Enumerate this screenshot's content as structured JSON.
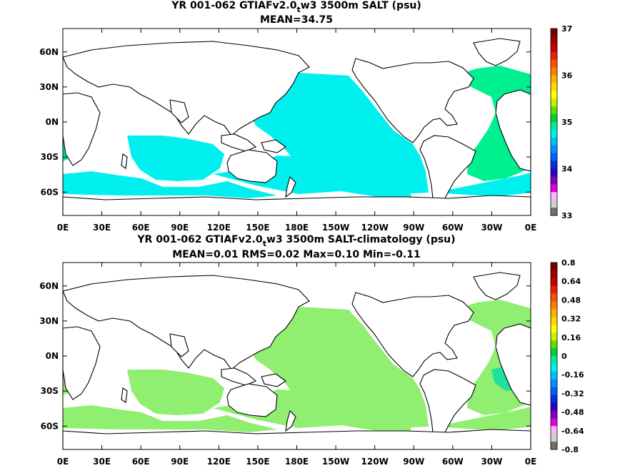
{
  "panels": [
    {
      "title_line1": "YR 001-062 GTIAFv2.0",
      "title_sub": "t",
      "title_line1_rest": "w3 3500m SALT (psu)",
      "title_line2": "MEAN=34.75",
      "fill_main": "#00f0f0",
      "fill_alt": "#00f090",
      "colorbar_labels": [
        "37",
        "36",
        "35",
        "34",
        "33"
      ],
      "colorbar_colors": [
        "#7a0000",
        "#a00000",
        "#cc0000",
        "#ee2000",
        "#ff5000",
        "#ff8000",
        "#ffb000",
        "#ffd800",
        "#ffff00",
        "#c8f000",
        "#60e000",
        "#00d040",
        "#00f090",
        "#00f0f0",
        "#00c0ff",
        "#0090ff",
        "#0060ff",
        "#0030e0",
        "#3000c0",
        "#8000c0",
        "#e000e0",
        "#ffb0ff",
        "#d0d0d0",
        "#707070"
      ]
    },
    {
      "title_line1": "YR 001-062 GTIAFv2.0",
      "title_sub": "t",
      "title_line1_rest": "w3 3500m SALT-climatology (psu)",
      "title_line2": "MEAN=0.01   RMS=0.02   Max=0.10   Min=-0.11",
      "fill_main": "#90ee70",
      "fill_alt": "#20e0a0",
      "colorbar_labels": [
        "0.8",
        "0.64",
        "0.48",
        "0.32",
        "0.16",
        "0",
        "-0.16",
        "-0.32",
        "-0.48",
        "-0.64",
        "-0.8"
      ],
      "colorbar_colors": [
        "#7a0000",
        "#a00000",
        "#cc0000",
        "#ee2000",
        "#ff5000",
        "#ff8000",
        "#ffb000",
        "#ffd800",
        "#ffff00",
        "#c8f000",
        "#60e000",
        "#00d040",
        "#00f090",
        "#00f0f0",
        "#00c0ff",
        "#0090ff",
        "#0060ff",
        "#0030e0",
        "#3000c0",
        "#8000c0",
        "#e000e0",
        "#ffb0ff",
        "#d0d0d0",
        "#707070"
      ]
    }
  ],
  "lon_ticks": [
    "0E",
    "30E",
    "60E",
    "90E",
    "120E",
    "150E",
    "180E",
    "150W",
    "120W",
    "90W",
    "60W",
    "30W",
    "0E"
  ],
  "lat_ticks": [
    "60N",
    "30N",
    "0N",
    "30S",
    "60S"
  ],
  "lat_tick_values": [
    60,
    30,
    0,
    -30,
    -60
  ]
}
